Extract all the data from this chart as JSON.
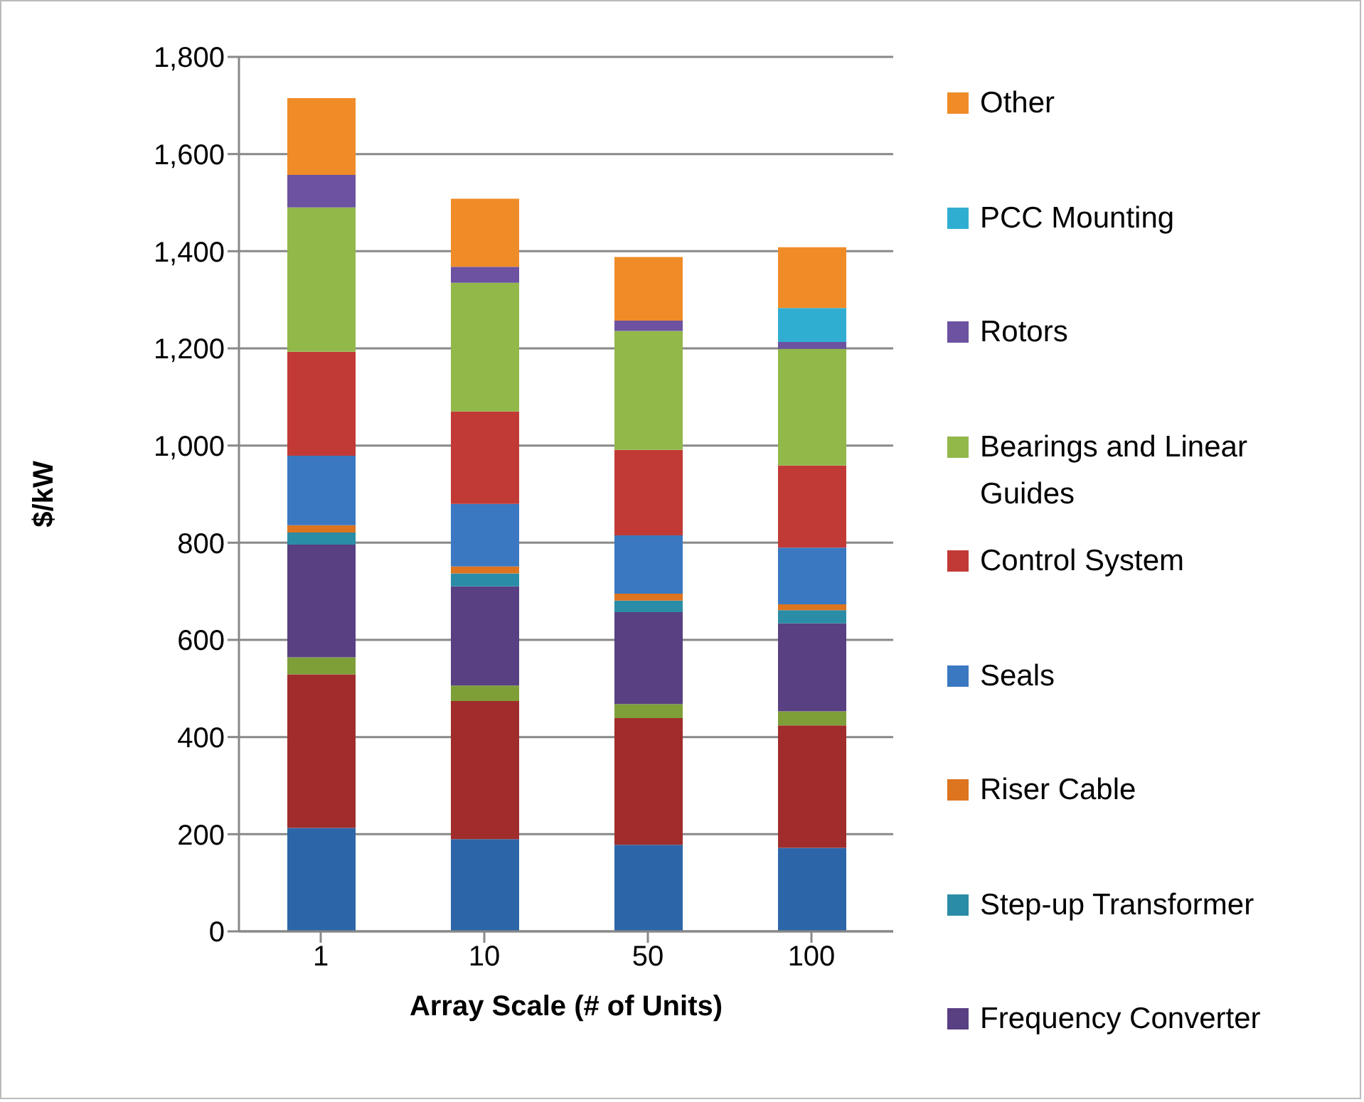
{
  "chart_data": {
    "type": "bar",
    "stacked": true,
    "xlabel": "Array Scale (# of Units)",
    "ylabel": "$/kW",
    "categories": [
      "1",
      "10",
      "50",
      "100"
    ],
    "ylim": [
      0,
      1800
    ],
    "yticks": [
      0,
      {
        "value": 200,
        "label": "200"
      },
      {
        "value": 400,
        "label": "400"
      },
      {
        "value": 600,
        "label": "600"
      },
      {
        "value": 800,
        "label": "800"
      },
      {
        "value": 1000,
        "label": "1,000"
      },
      {
        "value": 1200,
        "label": "1,200"
      },
      {
        "value": 1400,
        "label": "1,400"
      },
      {
        "value": 1600,
        "label": "1,600"
      },
      {
        "value": 1800,
        "label": "1,800"
      }
    ],
    "grid": "y",
    "legend": "right",
    "series": [
      {
        "color": "#2d66a8",
        "values": [
          213,
          190,
          178,
          172
        ]
      },
      {
        "color": "#a02d2b",
        "values": [
          316,
          284,
          261,
          252
        ]
      },
      {
        "color": "#7e9f38",
        "values": [
          35,
          32,
          29,
          29
        ]
      },
      {
        "name": "Frequency Converter",
        "color": "#584083",
        "values": [
          232,
          204,
          189,
          181
        ]
      },
      {
        "name": "Step-up Transformer",
        "color": "#2a8ca6",
        "values": [
          25,
          27,
          24,
          27
        ]
      },
      {
        "name": "Riser Cable",
        "color": "#dc7420",
        "values": [
          15,
          14,
          14,
          12
        ]
      },
      {
        "name": "Seals",
        "color": "#3a78c2",
        "values": [
          143,
          129,
          120,
          117
        ]
      },
      {
        "name": "Control System",
        "color": "#c23a36",
        "values": [
          214,
          190,
          176,
          169
        ]
      },
      {
        "name": "Bearings and Linear Guides",
        "color": "#92b84a",
        "values": [
          297,
          265,
          245,
          240
        ]
      },
      {
        "name": "Rotors",
        "color": "#6c52a0",
        "values": [
          67,
          33,
          21,
          14
        ]
      },
      {
        "name": "PCC Mounting",
        "color": "#30aed2",
        "values": [
          0,
          0,
          0,
          70
        ]
      },
      {
        "name": "Other",
        "color": "#f08c28",
        "values": [
          158,
          140,
          131,
          125
        ]
      }
    ]
  }
}
